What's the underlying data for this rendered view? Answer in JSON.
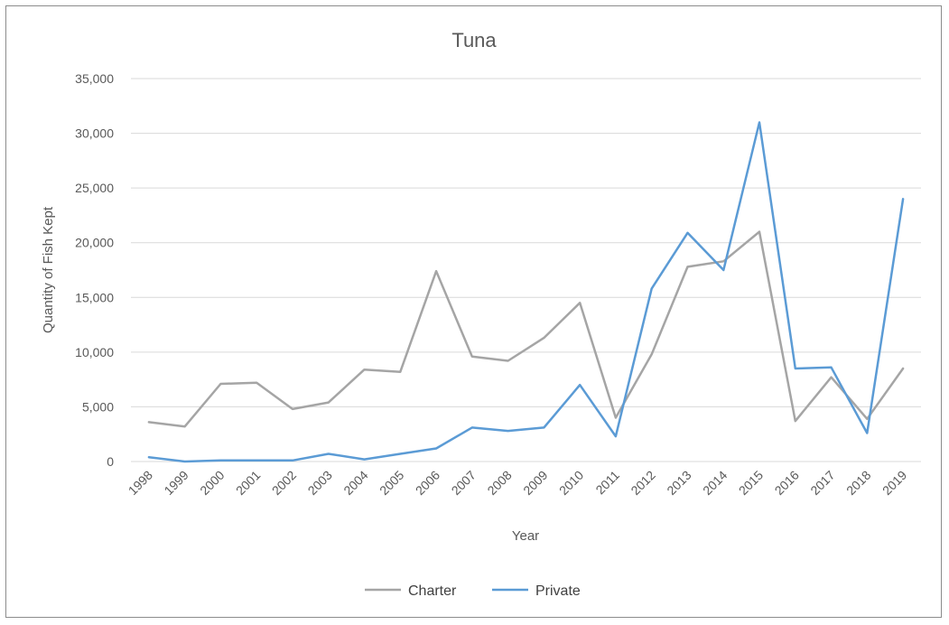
{
  "chart_data": {
    "type": "line",
    "title": "Tuna",
    "xlabel": "Year",
    "ylabel": "Quantity of Fish Kept",
    "ylim": [
      0,
      35000
    ],
    "ytick_values": [
      0,
      5000,
      10000,
      15000,
      20000,
      25000,
      30000,
      35000
    ],
    "ytick_labels": [
      "0",
      "5,000",
      "10,000",
      "15,000",
      "20,000",
      "25,000",
      "30,000",
      "35,000"
    ],
    "grid": true,
    "legend_position": "bottom",
    "categories": [
      "1998",
      "1999",
      "2000",
      "2001",
      "2002",
      "2003",
      "2004",
      "2005",
      "2006",
      "2007",
      "2008",
      "2009",
      "2010",
      "2011",
      "2012",
      "2013",
      "2014",
      "2015",
      "2016",
      "2017",
      "2018",
      "2019"
    ],
    "series": [
      {
        "name": "Charter",
        "color": "#a5a5a5",
        "values": [
          3600,
          3200,
          7100,
          7200,
          4800,
          5400,
          8400,
          8200,
          17400,
          9600,
          9200,
          11300,
          14500,
          4000,
          9800,
          17800,
          18300,
          21000,
          3700,
          7700,
          3900,
          8500
        ]
      },
      {
        "name": "Private",
        "color": "#5b9bd5",
        "values": [
          400,
          0,
          100,
          100,
          100,
          700,
          200,
          700,
          1200,
          3100,
          2800,
          3100,
          7000,
          2300,
          15800,
          20900,
          17500,
          31000,
          8500,
          8600,
          2600,
          24000
        ]
      }
    ]
  }
}
